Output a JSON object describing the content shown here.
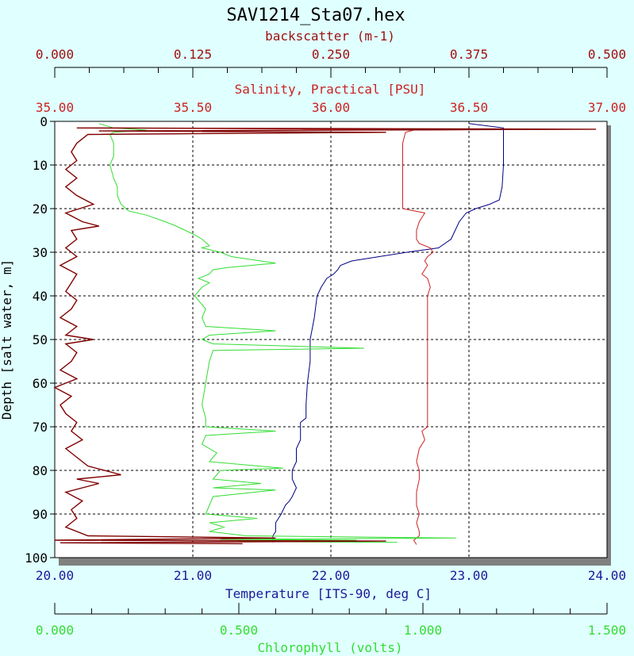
{
  "chart_data": {
    "type": "line",
    "title": "SAV1214_Sta07.hex",
    "ylabel": "Depth [salt water, m]",
    "ylim": [
      0,
      100
    ],
    "y_inverted": true,
    "grid": true,
    "y_ticks": [
      "0",
      "10",
      "20",
      "30",
      "40",
      "50",
      "60",
      "70",
      "80",
      "90",
      "100"
    ],
    "axes": {
      "backscatter": {
        "label": "backscatter (m-1)",
        "position": "top-outer",
        "color": "#a01010",
        "range": [
          0.0,
          0.5
        ],
        "ticks": [
          "0.000",
          "0.125",
          "0.250",
          "0.375",
          "0.500"
        ]
      },
      "salinity": {
        "label": "Salinity, Practical [PSU]",
        "position": "top-inner",
        "color": "#cc2222",
        "range": [
          35.0,
          37.0
        ],
        "ticks": [
          "35.00",
          "35.50",
          "36.00",
          "36.50",
          "37.00"
        ]
      },
      "temperature": {
        "label": "Temperature [ITS-90, deg C]",
        "position": "bottom-inner",
        "color": "#1a1a9a",
        "range": [
          20.0,
          24.0
        ],
        "ticks": [
          "20.00",
          "21.00",
          "22.00",
          "23.00",
          "24.00"
        ]
      },
      "chlorophyll": {
        "label": "Chlorophyll (volts)",
        "position": "bottom-outer",
        "color": "#33dd33",
        "range": [
          0.0,
          1.5
        ],
        "ticks": [
          "0.000",
          "0.500",
          "1.000",
          "1.500"
        ]
      }
    },
    "series": [
      {
        "name": "Temperature [ITS-90, deg C]",
        "axis": "temperature",
        "color": "#000080",
        "points": [
          [
            23.0,
            0.5
          ],
          [
            23.25,
            1.5
          ],
          [
            23.25,
            2
          ],
          [
            23.25,
            5
          ],
          [
            23.25,
            10
          ],
          [
            23.24,
            15
          ],
          [
            23.22,
            18
          ],
          [
            23.15,
            19
          ],
          [
            23.05,
            20
          ],
          [
            22.98,
            21
          ],
          [
            22.93,
            23
          ],
          [
            22.9,
            25
          ],
          [
            22.87,
            27
          ],
          [
            22.78,
            29
          ],
          [
            22.55,
            30
          ],
          [
            22.35,
            31
          ],
          [
            22.15,
            32
          ],
          [
            22.07,
            33
          ],
          [
            22.05,
            34
          ],
          [
            22.02,
            35
          ],
          [
            21.97,
            36
          ],
          [
            21.93,
            38
          ],
          [
            21.9,
            40
          ],
          [
            21.88,
            45
          ],
          [
            21.85,
            50
          ],
          [
            21.85,
            55
          ],
          [
            21.83,
            60
          ],
          [
            21.82,
            65
          ],
          [
            21.82,
            68
          ],
          [
            21.78,
            69
          ],
          [
            21.78,
            73
          ],
          [
            21.75,
            75
          ],
          [
            21.75,
            78
          ],
          [
            21.72,
            80
          ],
          [
            21.72,
            82
          ],
          [
            21.75,
            84
          ],
          [
            21.72,
            86
          ],
          [
            21.7,
            87
          ],
          [
            21.67,
            88
          ],
          [
            21.64,
            90
          ],
          [
            21.6,
            92
          ],
          [
            21.6,
            94
          ],
          [
            21.58,
            95
          ],
          [
            21.58,
            96.5
          ]
        ]
      },
      {
        "name": "Salinity, Practical [PSU]",
        "axis": "salinity",
        "color": "#cc2222",
        "points": [
          [
            35.22,
            1.5
          ],
          [
            36.0,
            1.8
          ],
          [
            36.55,
            1.9
          ],
          [
            36.3,
            2
          ],
          [
            36.27,
            2.5
          ],
          [
            36.26,
            5
          ],
          [
            36.26,
            10
          ],
          [
            36.26,
            15
          ],
          [
            36.26,
            19
          ],
          [
            36.26,
            20
          ],
          [
            36.3,
            20.5
          ],
          [
            36.34,
            21
          ],
          [
            36.32,
            23
          ],
          [
            36.31,
            25
          ],
          [
            36.31,
            27
          ],
          [
            36.32,
            28
          ],
          [
            36.36,
            29
          ],
          [
            36.37,
            30
          ],
          [
            36.35,
            31
          ],
          [
            36.34,
            32
          ],
          [
            36.35,
            33
          ],
          [
            36.33,
            35
          ],
          [
            36.35,
            36
          ],
          [
            36.36,
            38
          ],
          [
            36.35,
            40
          ],
          [
            36.35,
            45
          ],
          [
            36.35,
            50
          ],
          [
            36.35,
            55
          ],
          [
            36.35,
            60
          ],
          [
            36.35,
            65
          ],
          [
            36.35,
            68
          ],
          [
            36.35,
            70
          ],
          [
            36.33,
            71
          ],
          [
            36.34,
            73
          ],
          [
            36.32,
            75
          ],
          [
            36.31,
            78
          ],
          [
            36.32,
            80
          ],
          [
            36.32,
            82
          ],
          [
            36.31,
            85
          ],
          [
            36.31,
            88
          ],
          [
            36.32,
            90
          ],
          [
            36.31,
            92
          ],
          [
            36.32,
            94
          ],
          [
            36.32,
            95
          ],
          [
            36.3,
            96
          ],
          [
            36.31,
            97
          ]
        ]
      },
      {
        "name": "Chlorophyll (volts)",
        "axis": "chlorophyll",
        "color": "#33dd33",
        "points": [
          [
            0.12,
            0.5
          ],
          [
            0.16,
            1.5
          ],
          [
            0.25,
            2
          ],
          [
            0.16,
            2.5
          ],
          [
            0.15,
            3
          ],
          [
            0.16,
            5
          ],
          [
            0.16,
            8
          ],
          [
            0.15,
            10
          ],
          [
            0.16,
            13
          ],
          [
            0.17,
            15
          ],
          [
            0.17,
            17
          ],
          [
            0.18,
            19
          ],
          [
            0.2,
            20.5
          ],
          [
            0.25,
            21.5
          ],
          [
            0.3,
            23
          ],
          [
            0.33,
            24
          ],
          [
            0.38,
            26
          ],
          [
            0.4,
            27
          ],
          [
            0.42,
            28.5
          ],
          [
            0.4,
            29
          ],
          [
            0.45,
            30
          ],
          [
            0.48,
            31
          ],
          [
            0.6,
            32.5
          ],
          [
            0.47,
            33.5
          ],
          [
            0.43,
            34
          ],
          [
            0.42,
            35
          ],
          [
            0.39,
            36
          ],
          [
            0.42,
            37
          ],
          [
            0.4,
            38
          ],
          [
            0.38,
            40
          ],
          [
            0.41,
            43
          ],
          [
            0.4,
            45
          ],
          [
            0.41,
            47
          ],
          [
            0.6,
            48
          ],
          [
            0.42,
            49
          ],
          [
            0.4,
            50
          ],
          [
            0.43,
            51
          ],
          [
            0.84,
            52
          ],
          [
            0.43,
            52.5
          ],
          [
            0.42,
            55
          ],
          [
            0.41,
            60
          ],
          [
            0.4,
            65
          ],
          [
            0.41,
            68
          ],
          [
            0.41,
            70
          ],
          [
            0.6,
            71
          ],
          [
            0.41,
            72
          ],
          [
            0.4,
            74
          ],
          [
            0.44,
            76
          ],
          [
            0.42,
            78
          ],
          [
            0.62,
            79.5
          ],
          [
            0.45,
            80
          ],
          [
            0.43,
            82
          ],
          [
            0.56,
            83
          ],
          [
            0.43,
            84
          ],
          [
            0.6,
            84.5
          ],
          [
            0.43,
            86
          ],
          [
            0.42,
            88
          ],
          [
            0.41,
            90
          ],
          [
            0.55,
            91
          ],
          [
            0.42,
            92
          ],
          [
            0.46,
            93
          ],
          [
            0.42,
            94
          ],
          [
            0.52,
            95
          ],
          [
            1.09,
            95.5
          ],
          [
            0.45,
            95.8
          ],
          [
            0.82,
            96
          ],
          [
            0.5,
            96.3
          ],
          [
            0.93,
            96.5
          ]
        ]
      },
      {
        "name": "backscatter (m-1)",
        "axis": "backscatter",
        "color": "#800000",
        "points": [
          [
            0.02,
            1.5
          ],
          [
            0.49,
            1.8
          ],
          [
            0.04,
            2.2
          ],
          [
            0.3,
            2.5
          ],
          [
            0.03,
            3
          ],
          [
            0.02,
            5
          ],
          [
            0.015,
            7
          ],
          [
            0.02,
            9
          ],
          [
            0.01,
            11
          ],
          [
            0.02,
            13
          ],
          [
            0.01,
            15
          ],
          [
            0.02,
            17
          ],
          [
            0.035,
            19
          ],
          [
            0.01,
            21
          ],
          [
            0.025,
            23
          ],
          [
            0.04,
            24
          ],
          [
            0.015,
            25
          ],
          [
            0.02,
            27
          ],
          [
            0.01,
            29
          ],
          [
            0.02,
            31
          ],
          [
            0.005,
            33
          ],
          [
            0.02,
            35
          ],
          [
            0.015,
            37
          ],
          [
            0.01,
            39
          ],
          [
            0.02,
            41
          ],
          [
            0.015,
            43
          ],
          [
            0.005,
            45
          ],
          [
            0.02,
            47
          ],
          [
            0.01,
            49
          ],
          [
            0.035,
            50
          ],
          [
            0.01,
            51
          ],
          [
            0.02,
            53
          ],
          [
            0.015,
            55
          ],
          [
            0.005,
            57
          ],
          [
            0.02,
            59
          ],
          [
            0.0,
            61
          ],
          [
            0.015,
            63
          ],
          [
            0.005,
            65
          ],
          [
            0.01,
            67
          ],
          [
            0.02,
            69
          ],
          [
            0.015,
            71
          ],
          [
            0.025,
            73
          ],
          [
            0.01,
            75
          ],
          [
            0.02,
            77
          ],
          [
            0.03,
            79
          ],
          [
            0.06,
            81
          ],
          [
            0.02,
            82
          ],
          [
            0.04,
            83
          ],
          [
            0.01,
            85
          ],
          [
            0.025,
            87
          ],
          [
            0.015,
            89
          ],
          [
            0.02,
            91
          ],
          [
            0.01,
            93
          ],
          [
            0.03,
            95
          ],
          [
            0.2,
            95.5
          ],
          [
            0.0,
            96
          ],
          [
            0.3,
            96.2
          ],
          [
            0.005,
            96.6
          ],
          [
            0.17,
            96.8
          ]
        ]
      }
    ]
  }
}
